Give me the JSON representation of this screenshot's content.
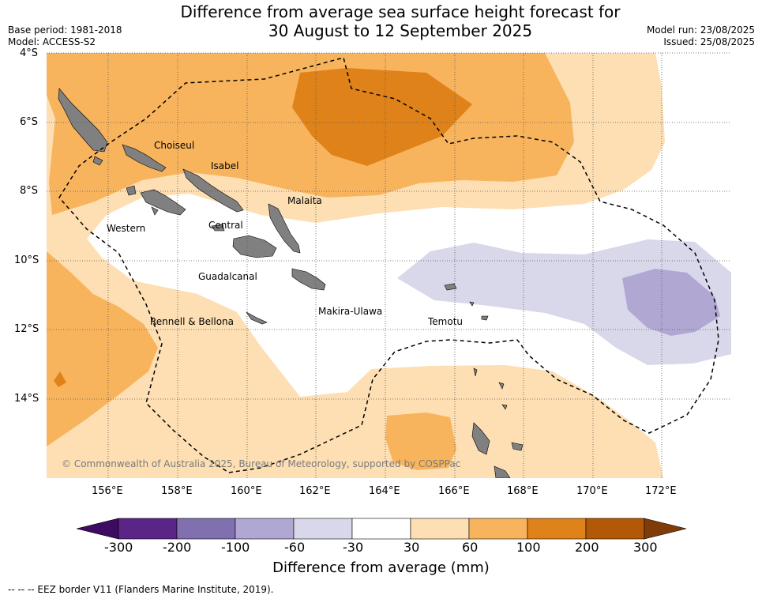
{
  "header": {
    "title_line1": "Difference from average sea surface height forecast for",
    "title_line2": "30 August to 12 September 2025",
    "base_period": "Base period: 1981-2018",
    "model": "Model: ACCESS-S2",
    "model_run": "Model run: 23/08/2025",
    "issued": "Issued: 25/08/2025"
  },
  "map": {
    "lat_labels": [
      "4°S",
      "6°S",
      "8°S",
      "10°S",
      "12°S",
      "14°S"
    ],
    "lon_labels": [
      "156°E",
      "158°E",
      "160°E",
      "162°E",
      "164°E",
      "166°E",
      "168°E",
      "170°E",
      "172°E"
    ],
    "regions": {
      "choiseul": "Choiseul",
      "isabel": "Isabel",
      "malaita": "Malaita",
      "western": "Western",
      "central": "Central",
      "guadalcanal": "Guadalcanal",
      "makira": "Makira-Ulawa",
      "temotu": "Temotu",
      "rennell": "Rennell & Bellona"
    },
    "copyright": "© Commonwealth of Australia 2025, Bureau of Meteorology, supported by COSPPac",
    "colors": {
      "land": "#808080",
      "orange_light": "#fddfb3",
      "orange_mid": "#f8b45d",
      "orange_dark": "#e0821a",
      "purple_light": "#d8d8ea",
      "purple_mid": "#b0a8d2"
    }
  },
  "colorbar": {
    "title": "Difference from average (mm)",
    "ticks": [
      "-300",
      "-200",
      "-100",
      "-60",
      "-30",
      "30",
      "60",
      "100",
      "200",
      "300"
    ],
    "colors": [
      "#3f0a63",
      "#5a2587",
      "#8070b0",
      "#b0a8d2",
      "#d8d8ea",
      "#ffffff",
      "#fddfb3",
      "#f8b45d",
      "#e0821a",
      "#b35806",
      "#7f3b08"
    ]
  },
  "legend": {
    "eez_note": "--  --  -- EEZ border V11 (Flanders Marine Institute, 2019)."
  }
}
